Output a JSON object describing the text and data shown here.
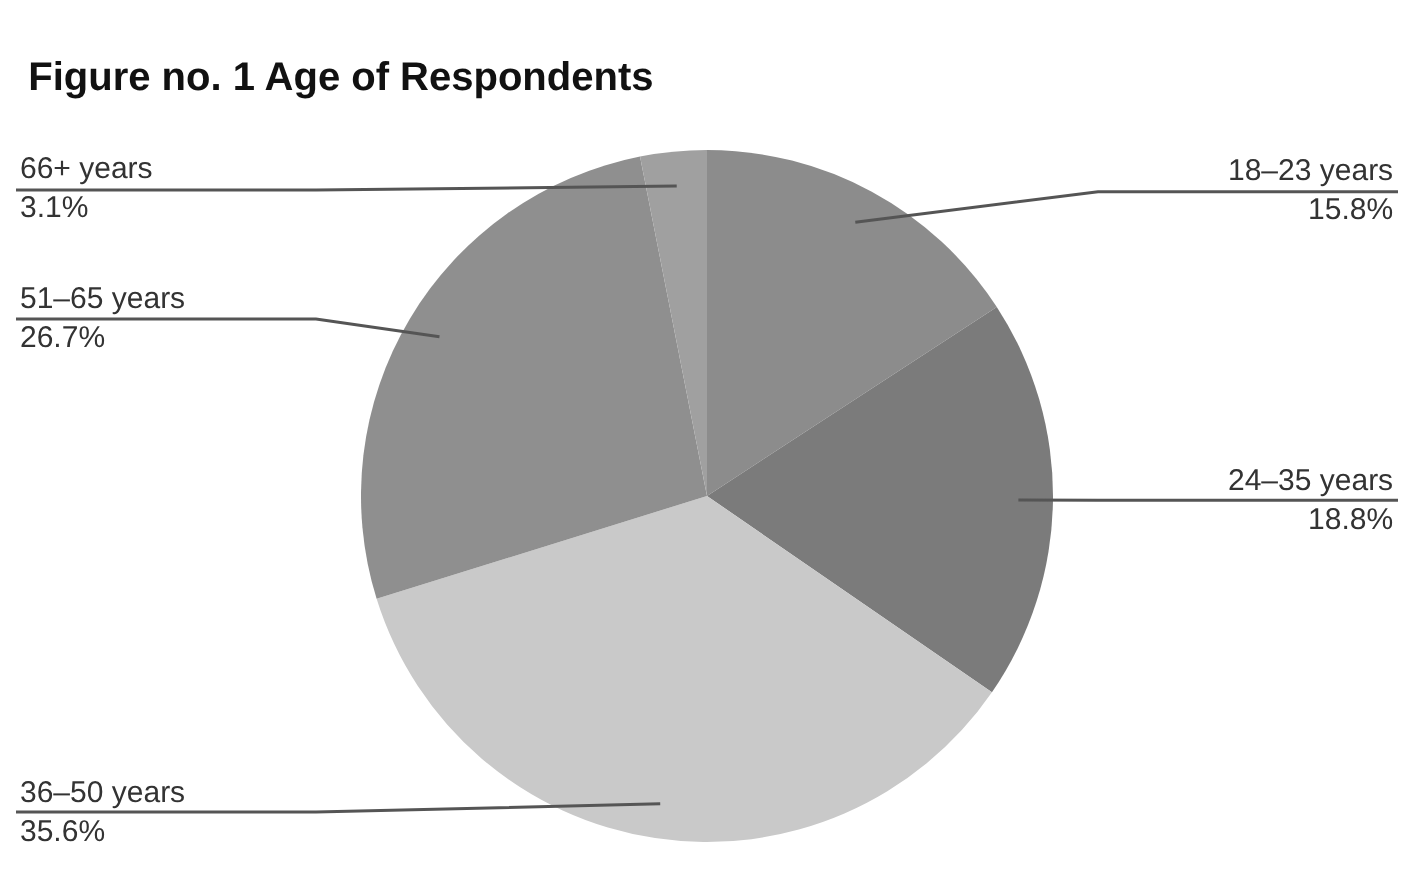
{
  "chart_data": {
    "type": "pie",
    "title": "Figure no. 1 Age of Respondents",
    "categories": [
      "18–23 years",
      "24–35 years",
      "36–50 years",
      "51–65 years",
      "66+ years"
    ],
    "values": [
      15.8,
      18.8,
      35.6,
      26.7,
      3.1
    ],
    "value_labels": [
      "15.8%",
      "18.8%",
      "35.6%",
      "26.7%",
      "3.1%"
    ],
    "colors": [
      "#8c8c8c",
      "#7b7b7b",
      "#c9c9c9",
      "#8f8f8f",
      "#a0a0a0"
    ],
    "legend": false
  }
}
